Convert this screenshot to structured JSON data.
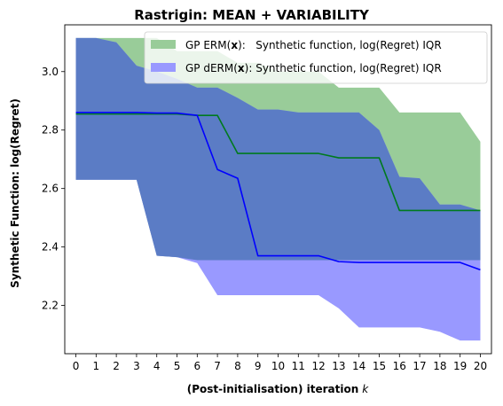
{
  "chart_data": {
    "type": "area",
    "title": "Rastrigin: MEAN + VARIABILITY",
    "xlabel": "(Post-initialisation) iteration",
    "xlabel_var": "k",
    "ylabel": "Synthetic Function: log(Regret)",
    "x": [
      0,
      1,
      2,
      3,
      4,
      5,
      6,
      7,
      8,
      9,
      10,
      11,
      12,
      13,
      14,
      15,
      16,
      17,
      18,
      19,
      20
    ],
    "xlim": [
      -0.55,
      20.55
    ],
    "ylim": [
      2.035,
      3.16
    ],
    "yticks": [
      2.2,
      2.4,
      2.6,
      2.8,
      3.0
    ],
    "ytick_labels": [
      "2.2",
      "2.4",
      "2.6",
      "2.8",
      "3.0"
    ],
    "xtick_labels": [
      "0",
      "1",
      "2",
      "3",
      "4",
      "5",
      "6",
      "7",
      "8",
      "9",
      "10",
      "11",
      "12",
      "13",
      "14",
      "15",
      "16",
      "17",
      "18",
      "19",
      "20"
    ],
    "legend_position": "top-right",
    "series": [
      {
        "name": "GP ERM(x): Synthetic function, log(Regret) IQR",
        "legend_prefix": "GP ERM(",
        "legend_bold": "x",
        "legend_suffix": "):   Synthetic function, log(Regret) IQR",
        "color": "#99cc99",
        "upper": [
          3.115,
          3.115,
          3.115,
          3.115,
          3.115,
          3.07,
          3.07,
          3.07,
          3.03,
          3.03,
          3.0,
          3.0,
          3.0,
          2.945,
          2.945,
          2.945,
          2.86,
          2.86,
          2.86,
          2.86,
          2.76
        ],
        "lower": [
          2.63,
          2.63,
          2.63,
          2.63,
          2.37,
          2.365,
          2.355,
          2.355,
          2.355,
          2.355,
          2.355,
          2.355,
          2.355,
          2.355,
          2.355,
          2.355,
          2.355,
          2.355,
          2.355,
          2.355,
          2.355
        ],
        "mean": [
          2.855,
          2.855,
          2.855,
          2.855,
          2.855,
          2.855,
          2.85,
          2.85,
          2.72,
          2.72,
          2.72,
          2.72,
          2.72,
          2.705,
          2.705,
          2.705,
          2.525,
          2.525,
          2.525,
          2.525,
          2.525
        ],
        "mean_color": "#007a1e"
      },
      {
        "name": "GP dERM(x): Synthetic function, log(Regret) IQR",
        "legend_prefix": "GP dERM(",
        "legend_bold": "x",
        "legend_suffix": "): Synthetic function, log(Regret) IQR",
        "color": "#9999ff",
        "upper": [
          3.115,
          3.115,
          3.1,
          3.02,
          3.0,
          2.975,
          2.945,
          2.945,
          2.91,
          2.87,
          2.87,
          2.86,
          2.86,
          2.86,
          2.86,
          2.8,
          2.64,
          2.635,
          2.545,
          2.545,
          2.525
        ],
        "lower": [
          2.63,
          2.63,
          2.63,
          2.63,
          2.37,
          2.365,
          2.345,
          2.235,
          2.235,
          2.235,
          2.235,
          2.235,
          2.235,
          2.19,
          2.125,
          2.125,
          2.125,
          2.125,
          2.11,
          2.08,
          2.08
        ],
        "mean": [
          2.86,
          2.86,
          2.86,
          2.86,
          2.858,
          2.858,
          2.85,
          2.665,
          2.635,
          2.37,
          2.37,
          2.37,
          2.37,
          2.35,
          2.347,
          2.347,
          2.347,
          2.347,
          2.347,
          2.347,
          2.322
        ],
        "mean_color": "#0000ff"
      }
    ],
    "overlap_color": "#5b7cc5"
  }
}
